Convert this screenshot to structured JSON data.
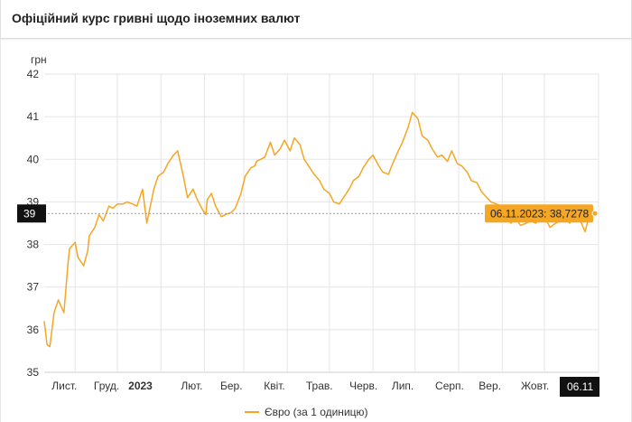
{
  "page": {
    "title": "Офіційний курс гривні щодо іноземних валют"
  },
  "colors": {
    "series": "#f5a623",
    "tooltip_bg": "#f5a623",
    "axis_badge_bg": "#111111",
    "grid": "#e5e5e5"
  },
  "chart_data": {
    "type": "line",
    "ylabel": "грн",
    "ylim": [
      35,
      42
    ],
    "yticks": [
      "35",
      "36",
      "37",
      "38",
      "39",
      "40",
      "41",
      "42"
    ],
    "xtick_labels": [
      "Лист.",
      "Груд.",
      "2023",
      "Лют.",
      "Бер.",
      "Квіт.",
      "Трав.",
      "Черв.",
      "Лип.",
      "Серп.",
      "Вер.",
      "Жовт."
    ],
    "grid": true,
    "legend": "bottom-center",
    "crosshair": {
      "y_badge": "39",
      "x_badge": "06.11",
      "tooltip": "06.11.2023: 38,7278"
    },
    "series": [
      {
        "name": "Євро (за 1 одиницю)",
        "x": [
          "2022-10-10",
          "2022-10-12",
          "2022-10-14",
          "2022-10-17",
          "2022-10-20",
          "2022-10-24",
          "2022-10-27",
          "2022-10-28",
          "2022-11-01",
          "2022-11-03",
          "2022-11-07",
          "2022-11-10",
          "2022-11-11",
          "2022-11-15",
          "2022-11-18",
          "2022-11-21",
          "2022-11-25",
          "2022-11-28",
          "2022-12-01",
          "2022-12-05",
          "2022-12-08",
          "2022-12-12",
          "2022-12-15",
          "2022-12-19",
          "2022-12-22",
          "2022-12-27",
          "2022-12-30",
          "2023-01-03",
          "2023-01-06",
          "2023-01-10",
          "2023-01-13",
          "2023-01-17",
          "2023-01-20",
          "2023-01-24",
          "2023-01-27",
          "2023-01-31",
          "2023-02-02",
          "2023-02-03",
          "2023-02-06",
          "2023-02-09",
          "2023-02-13",
          "2023-02-16",
          "2023-02-20",
          "2023-02-23",
          "2023-02-27",
          "2023-03-02",
          "2023-03-06",
          "2023-03-09",
          "2023-03-10",
          "2023-03-13",
          "2023-03-16",
          "2023-03-20",
          "2023-03-23",
          "2023-03-27",
          "2023-03-30",
          "2023-04-03",
          "2023-04-06",
          "2023-04-10",
          "2023-04-13",
          "2023-04-17",
          "2023-04-20",
          "2023-04-24",
          "2023-04-27",
          "2023-05-01",
          "2023-05-04",
          "2023-05-08",
          "2023-05-11",
          "2023-05-15",
          "2023-05-18",
          "2023-05-22",
          "2023-05-25",
          "2023-05-29",
          "2023-06-01",
          "2023-06-05",
          "2023-06-08",
          "2023-06-12",
          "2023-06-15",
          "2023-06-19",
          "2023-06-22",
          "2023-06-26",
          "2023-06-29",
          "2023-07-03",
          "2023-07-06",
          "2023-07-10",
          "2023-07-13",
          "2023-07-17",
          "2023-07-20",
          "2023-07-24",
          "2023-07-27",
          "2023-07-31",
          "2023-08-03",
          "2023-08-07",
          "2023-08-10",
          "2023-08-14",
          "2023-08-17",
          "2023-08-21",
          "2023-08-24",
          "2023-08-28",
          "2023-08-31",
          "2023-09-04",
          "2023-09-07",
          "2023-09-11",
          "2023-09-14",
          "2023-09-18",
          "2023-09-21",
          "2023-09-25",
          "2023-09-28",
          "2023-10-02",
          "2023-10-05",
          "2023-10-09",
          "2023-10-12",
          "2023-10-16",
          "2023-10-19",
          "2023-10-23",
          "2023-10-26",
          "2023-10-30",
          "2023-11-02",
          "2023-11-06"
        ],
        "values": [
          36.2,
          35.65,
          35.6,
          36.4,
          36.7,
          36.4,
          37.6,
          37.9,
          38.05,
          37.7,
          37.5,
          37.85,
          38.2,
          38.4,
          38.7,
          38.55,
          38.9,
          38.85,
          38.95,
          38.95,
          39.0,
          38.95,
          38.9,
          39.3,
          38.5,
          39.3,
          39.6,
          39.7,
          39.9,
          40.1,
          40.2,
          39.6,
          39.1,
          39.3,
          39.05,
          38.8,
          38.7,
          39.05,
          39.2,
          38.9,
          38.65,
          38.7,
          38.75,
          38.85,
          39.2,
          39.6,
          39.8,
          39.85,
          39.95,
          40.0,
          40.05,
          40.4,
          40.1,
          40.25,
          40.45,
          40.2,
          40.5,
          40.35,
          40.0,
          39.8,
          39.65,
          39.5,
          39.3,
          39.2,
          39.0,
          38.95,
          39.1,
          39.3,
          39.5,
          39.6,
          39.8,
          40.0,
          40.1,
          39.85,
          39.7,
          39.65,
          39.9,
          40.2,
          40.4,
          40.75,
          41.1,
          40.95,
          40.55,
          40.45,
          40.25,
          40.05,
          40.1,
          39.95,
          40.2,
          39.9,
          39.85,
          39.7,
          39.5,
          39.45,
          39.25,
          39.1,
          39.0,
          38.95,
          38.9,
          38.7,
          38.5,
          38.6,
          38.45,
          38.5,
          38.55,
          38.5,
          38.65,
          38.6,
          38.4,
          38.5,
          38.55,
          38.6,
          38.5,
          38.7,
          38.6,
          38.3,
          38.7,
          38.7278
        ]
      }
    ]
  }
}
